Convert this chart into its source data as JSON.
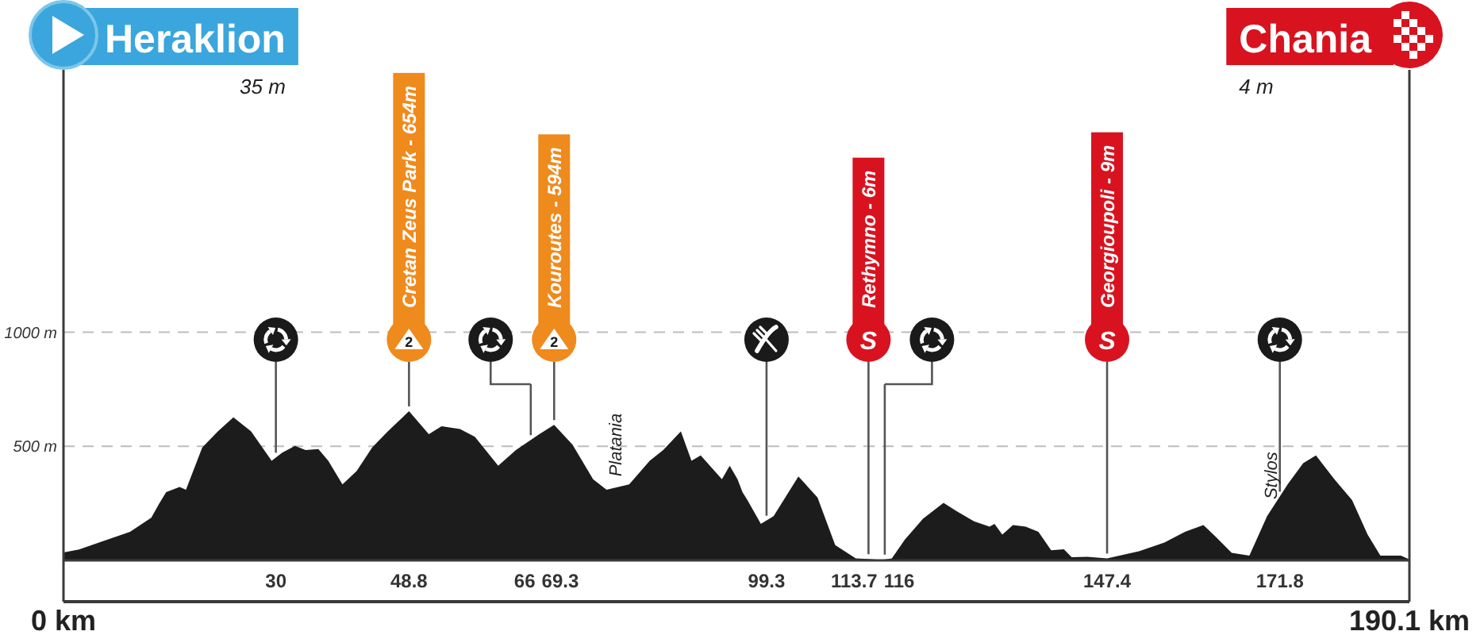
{
  "chart_data": {
    "type": "area",
    "color": "#1c1c1c",
    "x": [
      0,
      2.2,
      5.1,
      9.4,
      12.4,
      13.5,
      14.5,
      16.4,
      17.3,
      19.6,
      21.8,
      24,
      26.5,
      29.4,
      30.9,
      32.7,
      34.2,
      36,
      37.4,
      39.4,
      41.4,
      43.6,
      45.8,
      48.8,
      51.6,
      53.4,
      56,
      58.1,
      61.4,
      63.9,
      67.2,
      69.3,
      71.9,
      74.8,
      76.7,
      79.9,
      82.8,
      84.7,
      87.2,
      88.7,
      90,
      93,
      94.1,
      95.2,
      95.9,
      96.6,
      98.5,
      100.3,
      103.8,
      106.5,
      109,
      111.9,
      113.7,
      115.5,
      117,
      118.8,
      121.4,
      124.3,
      126.1,
      128.6,
      130.8,
      131.5,
      132.6,
      134.1,
      135.9,
      137.7,
      139.5,
      141.3,
      142.4,
      144.6,
      147.4,
      151.9,
      155.5,
      158.4,
      161,
      162.8,
      165,
      167.5,
      170,
      172.9,
      175.1,
      176.9,
      179.5,
      182,
      184.2,
      186,
      188.9,
      190.1
    ],
    "values": [
      35,
      48,
      79,
      125,
      187,
      248,
      299,
      322,
      310,
      495,
      565,
      627,
      565,
      437,
      472,
      502,
      484,
      488,
      437,
      333,
      391,
      495,
      565,
      654,
      553,
      588,
      576,
      542,
      415,
      484,
      553,
      594,
      507,
      356,
      310,
      333,
      437,
      484,
      565,
      437,
      460,
      356,
      415,
      356,
      299,
      264,
      160,
      194,
      368,
      276,
      67,
      9,
      6,
      2,
      9,
      90,
      183,
      252,
      217,
      171,
      148,
      160,
      113,
      155,
      148,
      125,
      44,
      49,
      14,
      16,
      9,
      40,
      78,
      125,
      155,
      102,
      33,
      21,
      194,
      333,
      426,
      460,
      356,
      264,
      113,
      21,
      21,
      4
    ],
    "xlim": [
      0,
      190.1
    ],
    "ylim": [
      0,
      2150
    ],
    "xticks": [
      {
        "value": 0,
        "label": "0 km"
      },
      {
        "value": 190.1,
        "label": "190.1 km"
      }
    ],
    "yticks": [
      {
        "value": 500,
        "label": "500 m"
      },
      {
        "value": 1000,
        "label": "1000 m"
      }
    ],
    "grid": "y",
    "ref_lines": [
      {
        "axis": "x",
        "value": 30
      },
      {
        "axis": "x",
        "value": 48.8,
        "label": "Cretan Zeus Park - 654m"
      },
      {
        "axis": "x",
        "value": 66
      },
      {
        "axis": "x",
        "value": 69.3,
        "label": "Kouroutes - 594m"
      },
      {
        "axis": "x",
        "value": 99.3
      },
      {
        "axis": "x",
        "value": 113.7,
        "label": "Rethymno - 6m"
      },
      {
        "axis": "x",
        "value": 116
      },
      {
        "axis": "x",
        "value": 147.4,
        "label": "Georgioupoli - 9m"
      },
      {
        "axis": "x",
        "value": 171.8
      }
    ],
    "annotations": [
      "Heraklion",
      "35 m",
      "Chania",
      "4 m",
      "Platania",
      "Stylos",
      "30",
      "48.8",
      "66",
      "69.3",
      "99.3",
      "113.7",
      "116",
      "147.4",
      "171.8",
      {
        "text": "2",
        "x": 48.8
      },
      {
        "text": "2",
        "x": 69.3
      },
      {
        "text": "S",
        "x": 113.7
      },
      {
        "text": "S",
        "x": 147.4
      }
    ]
  }
}
